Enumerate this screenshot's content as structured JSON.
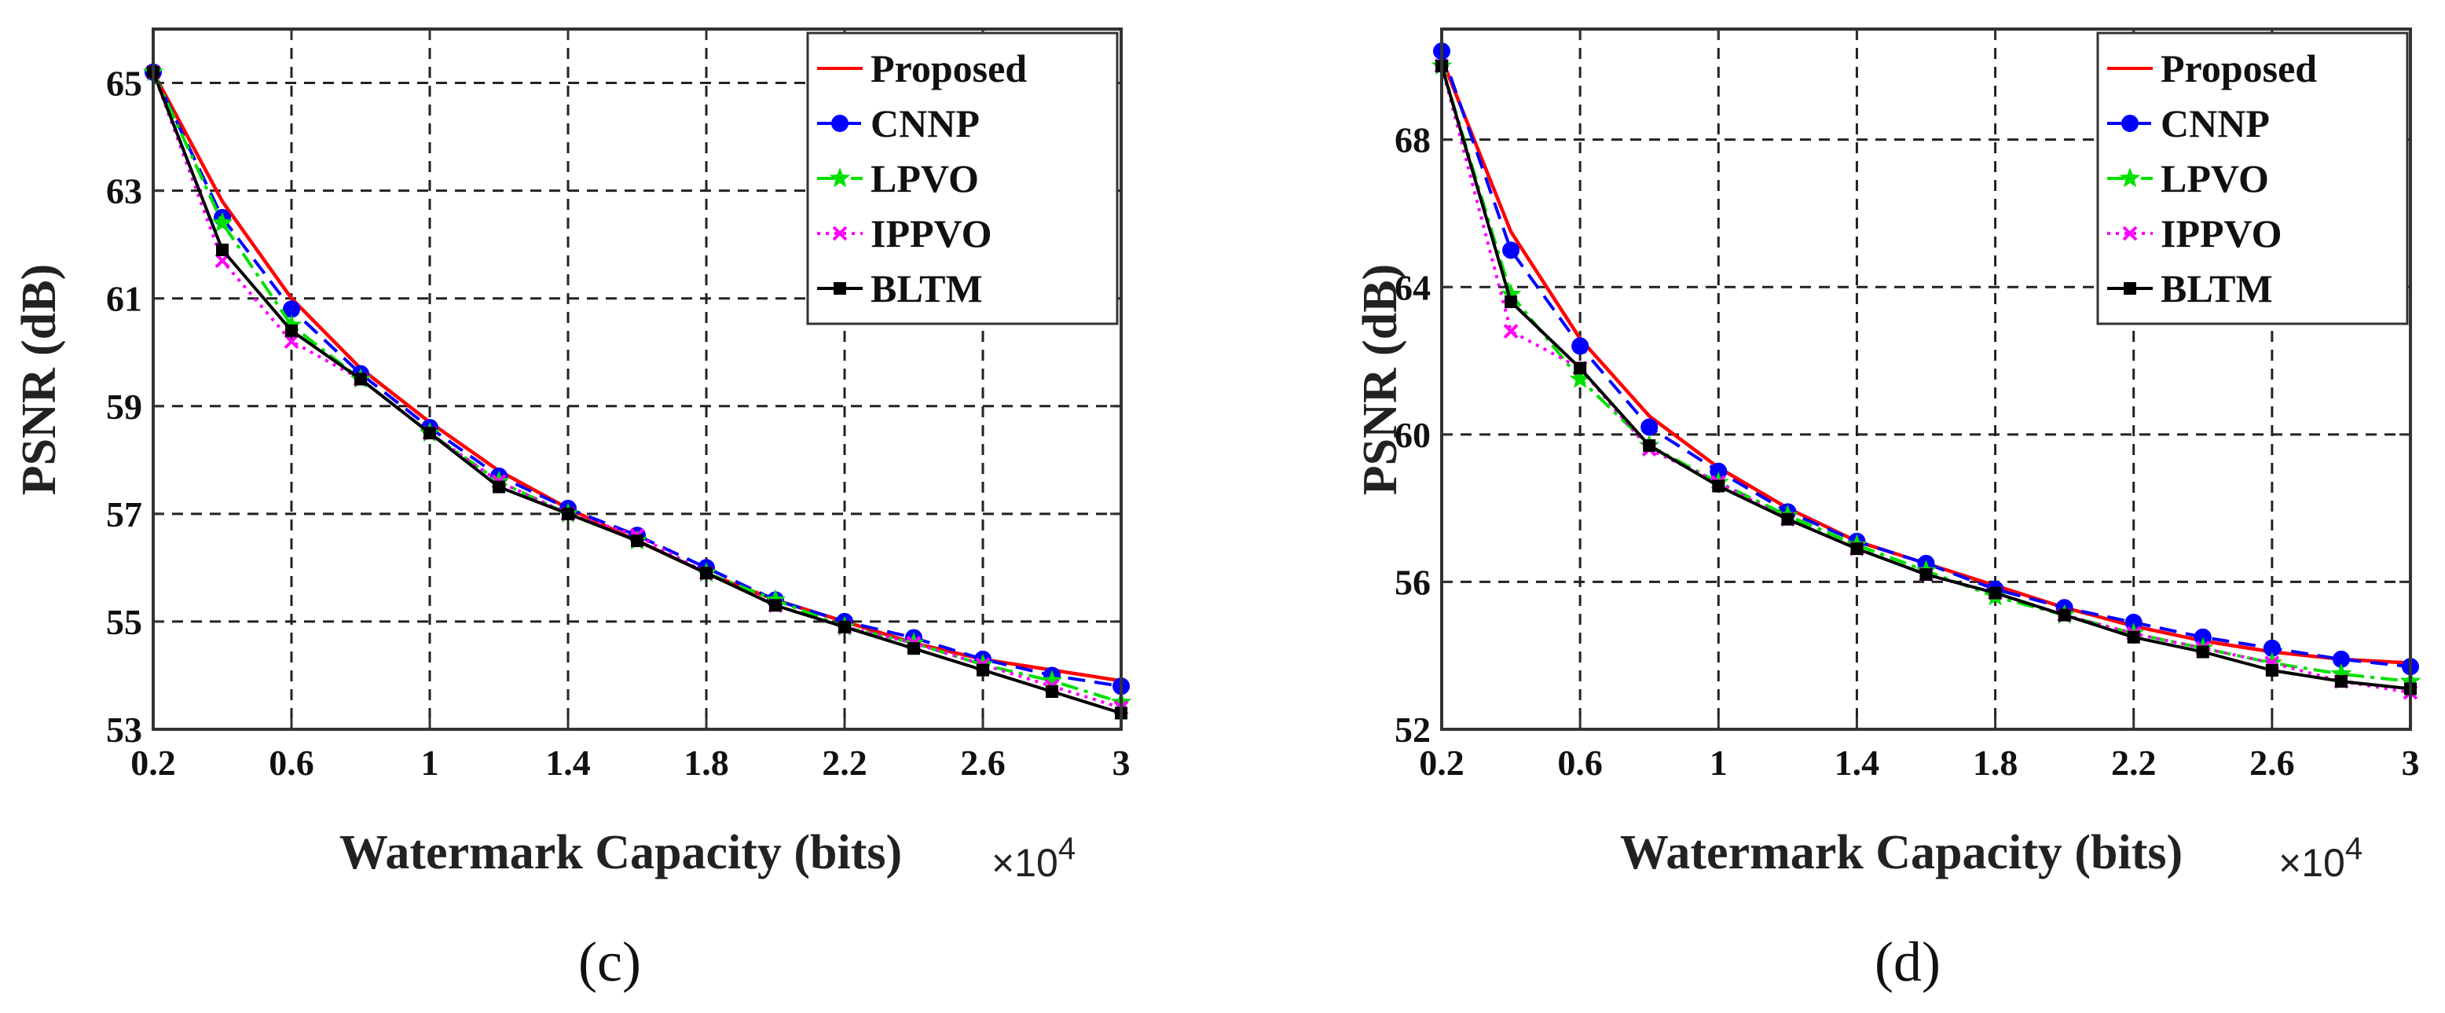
{
  "chart_data": [
    {
      "type": "line",
      "panel": "c",
      "caption": "(c)",
      "xlabel": "Watermark Capacity (bits)",
      "x_exponent_label": "×10",
      "x_exponent_power": "4",
      "ylabel": "PSNR (dB)",
      "xlim": [
        0.2,
        3
      ],
      "ylim": [
        53,
        66
      ],
      "xticks": [
        0.2,
        0.6,
        1,
        1.4,
        1.8,
        2.2,
        2.6,
        3
      ],
      "xtick_labels": [
        "0.2",
        "0.6",
        "1",
        "1.4",
        "1.8",
        "2.2",
        "2.6",
        "3"
      ],
      "yticks": [
        53,
        55,
        57,
        59,
        61,
        63,
        65
      ],
      "ytick_labels": [
        "53",
        "55",
        "57",
        "59",
        "61",
        "63",
        "65"
      ],
      "grid": true,
      "legend_position": "top-right",
      "x": [
        0.2,
        0.4,
        0.6,
        0.8,
        1.0,
        1.2,
        1.4,
        1.6,
        1.8,
        2.0,
        2.2,
        2.4,
        2.6,
        2.8,
        3.0
      ],
      "series": [
        {
          "name": "Proposed",
          "color": "#ff0000",
          "dash": "",
          "marker": "none",
          "values": [
            65.2,
            62.8,
            61.0,
            59.7,
            58.7,
            57.8,
            57.1,
            56.5,
            55.9,
            55.4,
            55.0,
            54.6,
            54.3,
            54.1,
            53.9
          ]
        },
        {
          "name": "CNNP",
          "color": "#0000ff",
          "dash": "22,12",
          "marker": "circle",
          "values": [
            65.2,
            62.5,
            60.8,
            59.6,
            58.6,
            57.7,
            57.1,
            56.6,
            56.0,
            55.4,
            55.0,
            54.7,
            54.3,
            54.0,
            53.8
          ]
        },
        {
          "name": "LPVO",
          "color": "#00e000",
          "dash": "22,8,5,8",
          "marker": "star",
          "values": [
            65.2,
            62.4,
            60.5,
            59.5,
            58.5,
            57.6,
            57.0,
            56.5,
            55.9,
            55.4,
            54.9,
            54.6,
            54.2,
            53.9,
            53.5
          ]
        },
        {
          "name": "IPPVO",
          "color": "#ff00ff",
          "dash": "4,7",
          "marker": "x",
          "values": [
            65.2,
            61.7,
            60.2,
            59.5,
            58.5,
            57.6,
            57.0,
            56.6,
            55.9,
            55.3,
            54.9,
            54.6,
            54.2,
            53.8,
            53.4
          ]
        },
        {
          "name": "BLTM",
          "color": "#000000",
          "dash": "",
          "marker": "square",
          "values": [
            65.2,
            61.9,
            60.4,
            59.5,
            58.5,
            57.5,
            57.0,
            56.5,
            55.9,
            55.3,
            54.9,
            54.5,
            54.1,
            53.7,
            53.3
          ]
        }
      ]
    },
    {
      "type": "line",
      "panel": "d",
      "caption": "(d)",
      "xlabel": "Watermark Capacity (bits)",
      "x_exponent_label": "×10",
      "x_exponent_power": "4",
      "ylabel": "PSNR (dB)",
      "xlim": [
        0.2,
        3
      ],
      "ylim": [
        52,
        71
      ],
      "xticks": [
        0.2,
        0.6,
        1,
        1.4,
        1.8,
        2.2,
        2.6,
        3
      ],
      "xtick_labels": [
        "0.2",
        "0.6",
        "1",
        "1.4",
        "1.8",
        "2.2",
        "2.6",
        "3"
      ],
      "yticks": [
        52,
        56,
        60,
        64,
        68
      ],
      "ytick_labels": [
        "52",
        "56",
        "60",
        "64",
        "68"
      ],
      "grid": true,
      "legend_position": "top-right",
      "x": [
        0.2,
        0.4,
        0.6,
        0.8,
        1.0,
        1.2,
        1.4,
        1.6,
        1.8,
        2.0,
        2.2,
        2.4,
        2.6,
        2.8,
        3.0
      ],
      "series": [
        {
          "name": "Proposed",
          "color": "#ff0000",
          "dash": "",
          "marker": "none",
          "values": [
            70.2,
            65.5,
            62.6,
            60.5,
            59.1,
            58.0,
            57.1,
            56.5,
            55.9,
            55.3,
            54.8,
            54.4,
            54.1,
            53.9,
            53.8
          ]
        },
        {
          "name": "CNNP",
          "color": "#0000ff",
          "dash": "22,12",
          "marker": "circle",
          "values": [
            70.4,
            65.0,
            62.4,
            60.2,
            59.0,
            57.9,
            57.1,
            56.5,
            55.8,
            55.3,
            54.9,
            54.5,
            54.2,
            53.9,
            53.7
          ]
        },
        {
          "name": "LPVO",
          "color": "#00e000",
          "dash": "22,8,5,8",
          "marker": "star",
          "values": [
            70.0,
            63.8,
            61.5,
            59.7,
            58.7,
            57.8,
            57.0,
            56.3,
            55.6,
            55.1,
            54.6,
            54.2,
            53.8,
            53.5,
            53.3
          ]
        },
        {
          "name": "IPPVO",
          "color": "#ff00ff",
          "dash": "4,7",
          "marker": "x",
          "values": [
            70.0,
            62.8,
            61.8,
            59.6,
            58.7,
            57.7,
            56.9,
            56.2,
            55.7,
            55.1,
            54.6,
            54.2,
            53.8,
            53.3,
            53.0
          ]
        },
        {
          "name": "BLTM",
          "color": "#000000",
          "dash": "",
          "marker": "square",
          "values": [
            70.0,
            63.6,
            61.8,
            59.7,
            58.6,
            57.7,
            56.9,
            56.2,
            55.7,
            55.1,
            54.5,
            54.1,
            53.6,
            53.3,
            53.1
          ]
        }
      ]
    }
  ]
}
